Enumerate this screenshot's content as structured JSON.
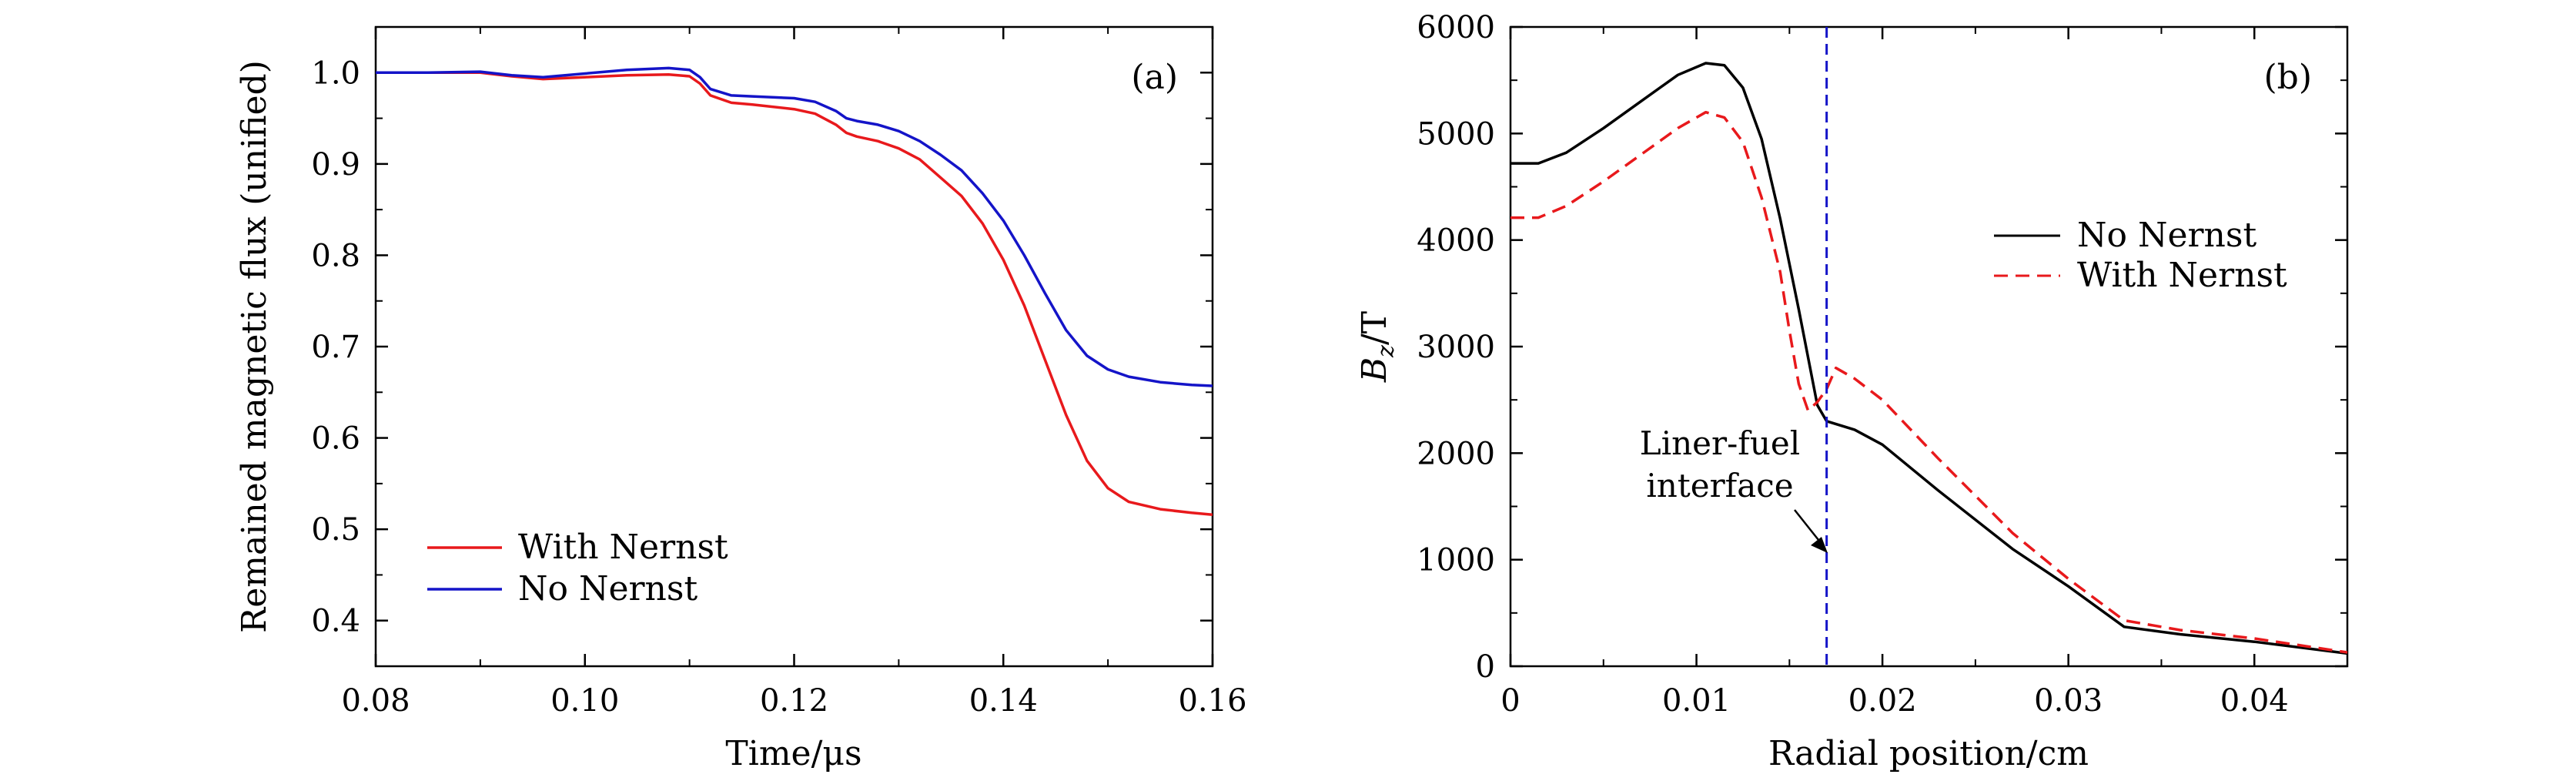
{
  "chart_data": [
    {
      "type": "line",
      "panel_label": "(a)",
      "xlabel": "Time/μs",
      "ylabel": "Remained magnetic flux (unified)",
      "xlim": [
        0.08,
        0.16
      ],
      "ylim": [
        0.35,
        1.05
      ],
      "xticks": [
        {
          "value": 0.08,
          "label": "0.08"
        },
        {
          "value": 0.1,
          "label": "0.10"
        },
        {
          "value": 0.12,
          "label": "0.12"
        },
        {
          "value": 0.14,
          "label": "0.14"
        },
        {
          "value": 0.16,
          "label": "0.16"
        }
      ],
      "yticks": [
        {
          "value": 0.4,
          "label": "0.4"
        },
        {
          "value": 0.5,
          "label": "0.5"
        },
        {
          "value": 0.6,
          "label": "0.6"
        },
        {
          "value": 0.7,
          "label": "0.7"
        },
        {
          "value": 0.8,
          "label": "0.8"
        },
        {
          "value": 0.9,
          "label": "0.9"
        },
        {
          "value": 1.0,
          "label": "1.0"
        }
      ],
      "grid": false,
      "legend_position": "bottom-left",
      "series": [
        {
          "name": "With Nernst",
          "color": "#e8191c",
          "dash": "solid",
          "x": [
            0.08,
            0.085,
            0.09,
            0.093,
            0.096,
            0.1,
            0.104,
            0.108,
            0.11,
            0.111,
            0.112,
            0.114,
            0.116,
            0.12,
            0.122,
            0.124,
            0.125,
            0.126,
            0.128,
            0.13,
            0.132,
            0.134,
            0.136,
            0.138,
            0.14,
            0.142,
            0.144,
            0.146,
            0.148,
            0.15,
            0.152,
            0.155,
            0.158,
            0.16
          ],
          "y": [
            1.0,
            1.0,
            1.0,
            0.996,
            0.993,
            0.995,
            0.997,
            0.998,
            0.996,
            0.988,
            0.975,
            0.967,
            0.965,
            0.96,
            0.955,
            0.943,
            0.934,
            0.93,
            0.925,
            0.917,
            0.905,
            0.885,
            0.865,
            0.835,
            0.795,
            0.745,
            0.685,
            0.625,
            0.575,
            0.545,
            0.53,
            0.522,
            0.518,
            0.516
          ]
        },
        {
          "name": "No Nernst",
          "color": "#1414c8",
          "dash": "solid",
          "x": [
            0.08,
            0.085,
            0.09,
            0.093,
            0.096,
            0.1,
            0.104,
            0.108,
            0.11,
            0.111,
            0.112,
            0.114,
            0.116,
            0.12,
            0.122,
            0.124,
            0.125,
            0.126,
            0.128,
            0.13,
            0.132,
            0.134,
            0.136,
            0.138,
            0.14,
            0.142,
            0.144,
            0.146,
            0.148,
            0.15,
            0.152,
            0.155,
            0.158,
            0.16
          ],
          "y": [
            1.0,
            1.0,
            1.001,
            0.997,
            0.995,
            0.999,
            1.003,
            1.005,
            1.003,
            0.995,
            0.982,
            0.975,
            0.974,
            0.972,
            0.968,
            0.958,
            0.95,
            0.947,
            0.943,
            0.936,
            0.925,
            0.91,
            0.893,
            0.868,
            0.838,
            0.8,
            0.758,
            0.718,
            0.69,
            0.675,
            0.667,
            0.661,
            0.658,
            0.657
          ]
        }
      ]
    },
    {
      "type": "line",
      "panel_label": "(b)",
      "xlabel": "Radial position/cm",
      "ylabel_main": "B",
      "ylabel_sub": "z",
      "ylabel_unit": "/T",
      "xlim": [
        0,
        0.045
      ],
      "ylim": [
        0,
        6000
      ],
      "xticks": [
        {
          "value": 0,
          "label": "0"
        },
        {
          "value": 0.01,
          "label": "0.01"
        },
        {
          "value": 0.02,
          "label": "0.02"
        },
        {
          "value": 0.03,
          "label": "0.03"
        },
        {
          "value": 0.04,
          "label": "0.04"
        }
      ],
      "yticks": [
        {
          "value": 0,
          "label": "0"
        },
        {
          "value": 1000,
          "label": "1000"
        },
        {
          "value": 2000,
          "label": "2000"
        },
        {
          "value": 3000,
          "label": "3000"
        },
        {
          "value": 4000,
          "label": "4000"
        },
        {
          "value": 5000,
          "label": "5000"
        },
        {
          "value": 6000,
          "label": "6000"
        }
      ],
      "grid": false,
      "legend_position": "top-right",
      "interface_x": 0.017,
      "annotation_lines": [
        "Liner-fuel",
        "interface"
      ],
      "series": [
        {
          "name": "No Nernst",
          "color": "#000000",
          "dash": "solid",
          "x": [
            0,
            0.0015,
            0.003,
            0.005,
            0.007,
            0.009,
            0.0105,
            0.0115,
            0.0125,
            0.0135,
            0.0145,
            0.0155,
            0.016,
            0.0165,
            0.017,
            0.0185,
            0.02,
            0.023,
            0.027,
            0.03,
            0.033,
            0.036,
            0.04,
            0.045
          ],
          "y": [
            4720,
            4720,
            4820,
            5050,
            5300,
            5550,
            5660,
            5640,
            5430,
            4950,
            4200,
            3350,
            2900,
            2450,
            2300,
            2220,
            2080,
            1650,
            1100,
            750,
            370,
            300,
            230,
            120
          ]
        },
        {
          "name": "With Nernst",
          "color": "#e8191c",
          "dash": "dashed",
          "x": [
            0,
            0.0015,
            0.003,
            0.005,
            0.007,
            0.009,
            0.0105,
            0.0115,
            0.0125,
            0.0135,
            0.0145,
            0.015,
            0.0155,
            0.016,
            0.0165,
            0.017,
            0.0175,
            0.0185,
            0.02,
            0.023,
            0.027,
            0.03,
            0.033,
            0.036,
            0.04,
            0.045
          ],
          "y": [
            4210,
            4210,
            4320,
            4550,
            4800,
            5050,
            5200,
            5150,
            4920,
            4400,
            3700,
            3150,
            2650,
            2400,
            2480,
            2600,
            2800,
            2700,
            2500,
            1950,
            1250,
            820,
            430,
            340,
            260,
            130
          ]
        }
      ]
    }
  ]
}
